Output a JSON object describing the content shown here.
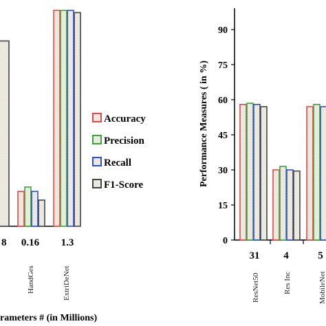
{
  "chart_data": [
    {
      "type": "bar",
      "categories": [
        "HandGes",
        "ExtriDeNet"
      ],
      "params": [
        "0.16",
        "1.3"
      ],
      "partial_param_label": "8",
      "xlabel": "rameters #  (in Millions)",
      "series": [
        {
          "name": "Accuracy",
          "values": [
            16,
            99
          ]
        },
        {
          "name": "Precision",
          "values": [
            18,
            99
          ]
        },
        {
          "name": "Recall",
          "values": [
            16,
            99
          ]
        },
        {
          "name": "F1-Score",
          "values": [
            12,
            98
          ]
        }
      ],
      "partial_gray_bar_value": 85,
      "ylim": [
        0,
        100
      ]
    },
    {
      "type": "bar",
      "categories": [
        "ResNet50",
        "Res Inc",
        "MobileNet"
      ],
      "params": [
        "31",
        "4",
        "5"
      ],
      "ylabel": "Performance Measures ( in %)",
      "yticks": [
        0,
        15,
        30,
        45,
        60,
        75,
        90
      ],
      "ylim": [
        0,
        100
      ],
      "series": [
        {
          "name": "Accuracy",
          "values": [
            58,
            30,
            57
          ]
        },
        {
          "name": "Precision",
          "values": [
            58.5,
            31.5,
            58
          ]
        },
        {
          "name": "Recall",
          "values": [
            58,
            30,
            57
          ]
        },
        {
          "name": "F1-Score",
          "values": [
            57,
            29.5,
            57
          ]
        }
      ]
    }
  ],
  "legend": {
    "items": [
      {
        "label": "Accuracy",
        "color": "#e84545"
      },
      {
        "label": "Precision",
        "color": "#3aa63a"
      },
      {
        "label": "Recall",
        "color": "#2a4fd0"
      },
      {
        "label": "F1-Score",
        "color": "#444444"
      }
    ]
  },
  "colors": {
    "Accuracy": "#e84545",
    "Precision": "#3aa63a",
    "Recall": "#2a4fd0",
    "F1-Score": "#444444"
  }
}
